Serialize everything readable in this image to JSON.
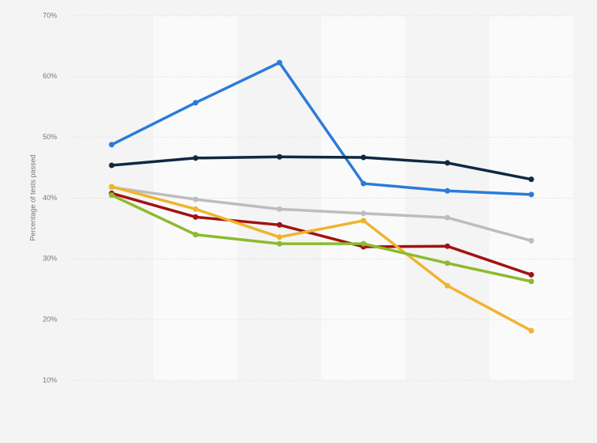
{
  "chart_data": {
    "type": "line",
    "y_axis_label": "Percentage of tests passed",
    "categories": [
      null,
      null,
      null,
      null,
      null,
      null
    ],
    "series": [
      {
        "color": "#2b7bd9",
        "values": [
          48.8,
          55.7,
          62.3,
          42.4,
          41.2,
          40.6
        ]
      },
      {
        "color": "#0f2942",
        "values": [
          45.4,
          46.6,
          46.8,
          46.7,
          45.8,
          43.1
        ]
      },
      {
        "color": "#bdbdbd",
        "values": [
          41.8,
          39.8,
          38.2,
          37.5,
          36.8,
          33.0
        ]
      },
      {
        "color": "#a11212",
        "values": [
          40.8,
          36.9,
          35.6,
          32.0,
          32.1,
          27.4
        ]
      },
      {
        "color": "#efb42e",
        "values": [
          41.9,
          38.2,
          33.6,
          36.3,
          25.6,
          18.2
        ]
      },
      {
        "color": "#8cbb2c",
        "values": [
          40.5,
          34.0,
          32.5,
          32.5,
          29.3,
          26.3
        ]
      }
    ],
    "ylim": [
      10,
      70
    ],
    "yticks": [
      {
        "value": 10,
        "label": "10%"
      },
      {
        "value": 20,
        "label": "20%"
      },
      {
        "value": 30,
        "label": "30%"
      },
      {
        "value": 40,
        "label": "40%"
      },
      {
        "value": 50,
        "label": "50%"
      },
      {
        "value": 60,
        "label": "60%"
      },
      {
        "value": 70,
        "label": "70%"
      }
    ],
    "grid": true
  }
}
